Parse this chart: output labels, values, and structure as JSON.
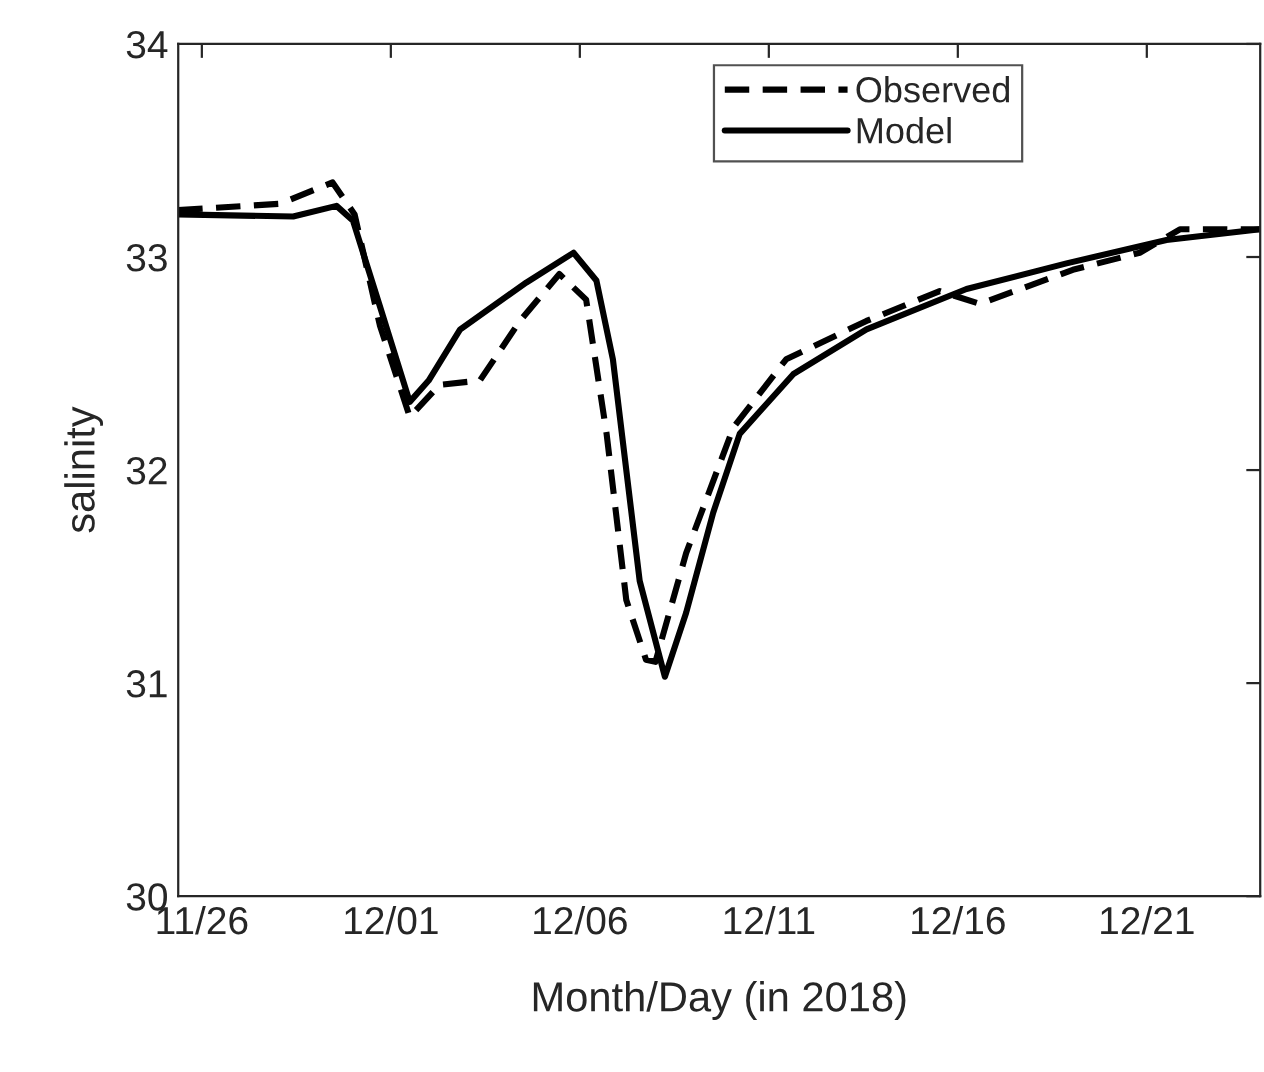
{
  "chart_data": {
    "type": "line",
    "xlabel": "Month/Day (in 2018)",
    "ylabel": "salinity",
    "xlim": [
      "2018-11-25T09:00",
      "2018-12-24T00:00"
    ],
    "ylim": [
      30,
      34
    ],
    "yticks": [
      30,
      31,
      32,
      33,
      34
    ],
    "xticks": [
      {
        "value": "2018-11-26",
        "label": "11/26"
      },
      {
        "value": "2018-12-01",
        "label": "12/01"
      },
      {
        "value": "2018-12-06",
        "label": "12/06"
      },
      {
        "value": "2018-12-11",
        "label": "12/11"
      },
      {
        "value": "2018-12-16",
        "label": "12/16"
      },
      {
        "value": "2018-12-21",
        "label": "12/21"
      }
    ],
    "legend": "top right",
    "grid": false,
    "marker": "none",
    "series": [
      {
        "name": "Observed",
        "color": "#000000",
        "line_style": "dashed",
        "x": [
          "2018-11-25T09:00",
          "2018-11-28T01:30",
          "2018-11-29T11:00",
          "2018-11-30T01:00",
          "2018-11-30T17:00",
          "2018-12-01T12:00",
          "2018-12-02T07:00",
          "2018-12-03T08:30",
          "2018-12-04T10:00",
          "2018-12-05T11:00",
          "2018-12-06T04:00",
          "2018-12-06T17:00",
          "2018-12-07T05:30",
          "2018-12-07T18:00",
          "2018-12-08T00:00",
          "2018-12-08T19:30",
          "2018-12-10T01:30",
          "2018-12-11T11:00",
          "2018-12-13T14:00",
          "2018-12-15T12:30",
          "2018-12-16T14:00",
          "2018-12-19T01:00",
          "2018-12-20T19:30",
          "2018-12-21T21:00",
          "2018-12-24T00:00"
        ],
        "values": [
          33.22,
          33.25,
          33.35,
          33.2,
          32.68,
          32.25,
          32.4,
          32.42,
          32.7,
          32.92,
          32.8,
          32.17,
          31.39,
          31.11,
          31.1,
          31.61,
          32.2,
          32.52,
          32.7,
          32.84,
          32.78,
          32.94,
          33.02,
          33.13,
          33.13
        ]
      },
      {
        "name": "Model",
        "color": "#000000",
        "line_style": "solid",
        "x": [
          "2018-11-25T09:00",
          "2018-11-28T10:00",
          "2018-11-29T13:30",
          "2018-11-30T00:00",
          "2018-11-30T17:00",
          "2018-12-01T12:00",
          "2018-12-02T00:00",
          "2018-12-02T20:00",
          "2018-12-04T14:00",
          "2018-12-05T20:00",
          "2018-12-06T10:30",
          "2018-12-06T21:00",
          "2018-12-07T14:00",
          "2018-12-08T06:00",
          "2018-12-08T19:30",
          "2018-12-09T12:40",
          "2018-12-10T05:30",
          "2018-12-11T15:30",
          "2018-12-13T14:00",
          "2018-12-16T05:30",
          "2018-12-18T21:00",
          "2018-12-21T12:30",
          "2018-12-24T00:00"
        ],
        "values": [
          33.2,
          33.19,
          33.24,
          33.17,
          32.77,
          32.32,
          32.42,
          32.66,
          32.88,
          33.02,
          32.89,
          32.52,
          31.48,
          31.03,
          31.33,
          31.8,
          32.17,
          32.45,
          32.66,
          32.85,
          32.97,
          33.08,
          33.13
        ]
      }
    ]
  }
}
